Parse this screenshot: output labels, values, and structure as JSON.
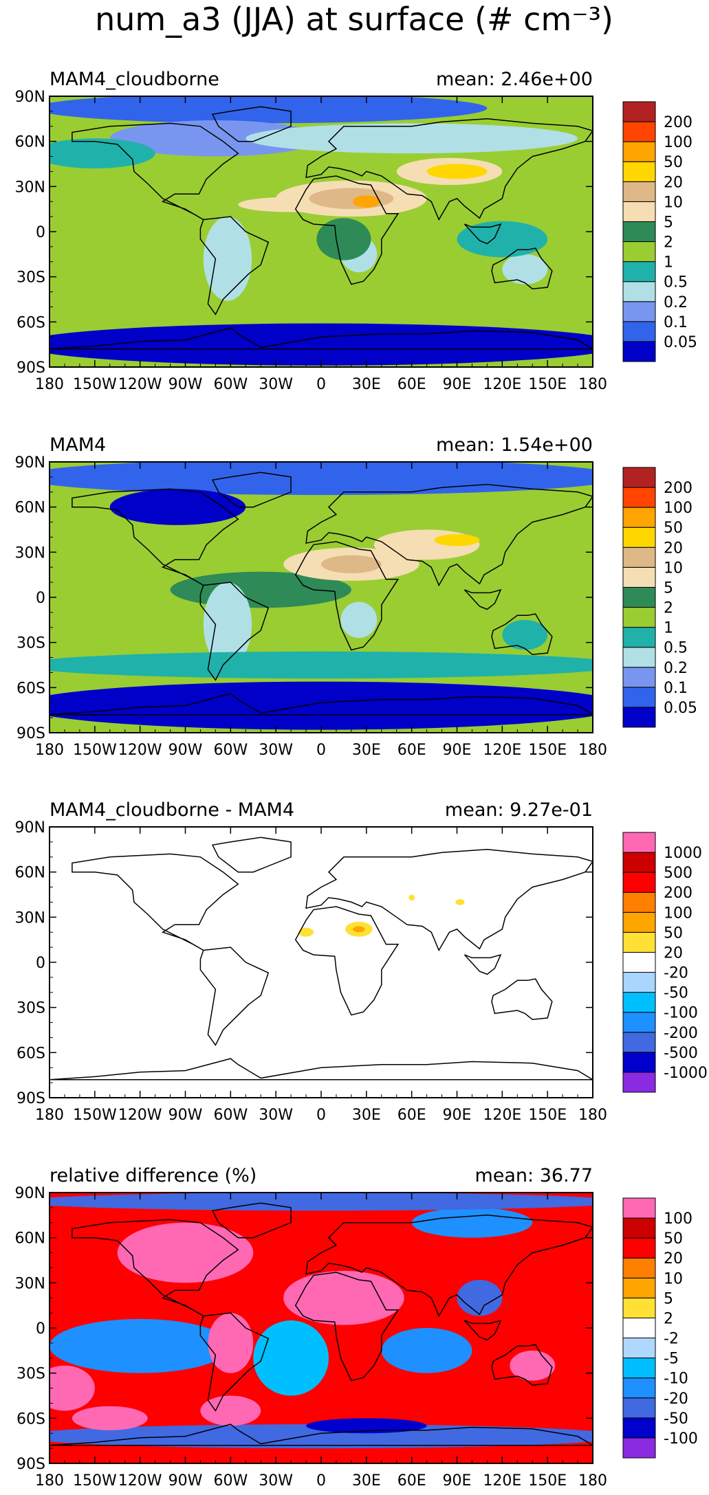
{
  "figure_title": "num_a3 (JJA) at surface (# cm⁻³)",
  "colors": {
    "abs": [
      "#0000c8",
      "#3264eb",
      "#7896f0",
      "#b0e0e6",
      "#20b2aa",
      "#9acd32",
      "#2e8b57",
      "#f5deb3",
      "#deb887",
      "#ffd700",
      "#ffa500",
      "#ff4500",
      "#b22222"
    ],
    "diff": [
      "#8a2be2",
      "#0000cd",
      "#4169e1",
      "#1e90ff",
      "#00bfff",
      "#a9d6ff",
      "#ffffff",
      "#ffe135",
      "#ffa500",
      "#ff7f00",
      "#ff0000",
      "#cd0000",
      "#ff69b4"
    ],
    "rel": [
      "#8a2be2",
      "#0000cd",
      "#4169e1",
      "#1e90ff",
      "#00bfff",
      "#b0d8ff",
      "#ffffff",
      "#ffe135",
      "#ffa500",
      "#ff7f00",
      "#ff0000",
      "#cd0000",
      "#ff69b4"
    ]
  },
  "chart_data": [
    {
      "type": "heatmap",
      "title": "MAM4_cloudborne",
      "mean_label": "mean: 2.46e+00",
      "x_ticks": [
        "180",
        "150W",
        "120W",
        "90W",
        "60W",
        "30W",
        "0",
        "30E",
        "60E",
        "90E",
        "120E",
        "150E",
        "180"
      ],
      "y_ticks": [
        "90N",
        "60N",
        "30N",
        "0",
        "30S",
        "60S",
        "90S"
      ],
      "colorbar_labels": [
        "0.05",
        "0.1",
        "0.2",
        "0.5",
        "1",
        "2",
        "5",
        "10",
        "20",
        "50",
        "100",
        "200"
      ],
      "palette": "abs",
      "base_level": 5,
      "regions": [
        {
          "lon": -40,
          "lat": 82,
          "rx": 150,
          "ry": 10,
          "level": 1
        },
        {
          "lon": -70,
          "lat": 62,
          "rx": 70,
          "ry": 12,
          "level": 2
        },
        {
          "lon": 60,
          "lat": 62,
          "rx": 110,
          "ry": 10,
          "level": 3
        },
        {
          "lon": -150,
          "lat": 52,
          "rx": 40,
          "ry": 10,
          "level": 4
        },
        {
          "lon": 20,
          "lat": 22,
          "rx": 50,
          "ry": 12,
          "level": 7
        },
        {
          "lon": 85,
          "lat": 40,
          "rx": 35,
          "ry": 9,
          "level": 7
        },
        {
          "lon": -20,
          "lat": 18,
          "rx": 35,
          "ry": 5,
          "level": 7
        },
        {
          "lon": 20,
          "lat": 22,
          "rx": 28,
          "ry": 7,
          "level": 8
        },
        {
          "lon": 90,
          "lat": 40,
          "rx": 20,
          "ry": 5,
          "level": 9
        },
        {
          "lon": 30,
          "lat": 20,
          "rx": 9,
          "ry": 4,
          "level": 10
        },
        {
          "lon": -62,
          "lat": -18,
          "rx": 16,
          "ry": 28,
          "level": 3
        },
        {
          "lon": 25,
          "lat": -15,
          "rx": 12,
          "ry": 12,
          "level": 3
        },
        {
          "lon": 135,
          "lat": -25,
          "rx": 15,
          "ry": 10,
          "level": 3
        },
        {
          "lon": 120,
          "lat": -5,
          "rx": 30,
          "ry": 12,
          "level": 4
        },
        {
          "lon": 15,
          "lat": -5,
          "rx": 18,
          "ry": 14,
          "level": 6
        },
        {
          "lon": 0,
          "lat": -75,
          "rx": 200,
          "ry": 14,
          "level": 0
        }
      ]
    },
    {
      "type": "heatmap",
      "title": "MAM4",
      "mean_label": "mean: 1.54e+00",
      "x_ticks": [
        "180",
        "150W",
        "120W",
        "90W",
        "60W",
        "30W",
        "0",
        "30E",
        "60E",
        "90E",
        "120E",
        "150E",
        "180"
      ],
      "y_ticks": [
        "90N",
        "60N",
        "30N",
        "0",
        "30S",
        "60S",
        "90S"
      ],
      "colorbar_labels": [
        "0.05",
        "0.1",
        "0.2",
        "0.5",
        "1",
        "2",
        "5",
        "10",
        "20",
        "50",
        "100",
        "200"
      ],
      "palette": "abs",
      "base_level": 5,
      "regions": [
        {
          "lon": 0,
          "lat": 80,
          "rx": 200,
          "ry": 12,
          "level": 1
        },
        {
          "lon": -95,
          "lat": 60,
          "rx": 45,
          "ry": 12,
          "level": 0
        },
        {
          "lon": -40,
          "lat": 5,
          "rx": 60,
          "ry": 12,
          "level": 6
        },
        {
          "lon": -62,
          "lat": -18,
          "rx": 16,
          "ry": 28,
          "level": 3
        },
        {
          "lon": 20,
          "lat": 22,
          "rx": 45,
          "ry": 11,
          "level": 7
        },
        {
          "lon": 70,
          "lat": 35,
          "rx": 35,
          "ry": 10,
          "level": 7
        },
        {
          "lon": 20,
          "lat": 22,
          "rx": 20,
          "ry": 6,
          "level": 8
        },
        {
          "lon": 90,
          "lat": 38,
          "rx": 15,
          "ry": 4,
          "level": 9
        },
        {
          "lon": 25,
          "lat": -15,
          "rx": 12,
          "ry": 12,
          "level": 3
        },
        {
          "lon": 135,
          "lat": -25,
          "rx": 15,
          "ry": 10,
          "level": 4
        },
        {
          "lon": 0,
          "lat": -45,
          "rx": 200,
          "ry": 9,
          "level": 4
        },
        {
          "lon": 0,
          "lat": -72,
          "rx": 200,
          "ry": 16,
          "level": 0
        }
      ]
    },
    {
      "type": "heatmap",
      "title": "MAM4_cloudborne - MAM4",
      "mean_label": "mean: 9.27e-01",
      "x_ticks": [
        "180",
        "150W",
        "120W",
        "90W",
        "60W",
        "30W",
        "0",
        "30E",
        "60E",
        "90E",
        "120E",
        "150E",
        "180"
      ],
      "y_ticks": [
        "90N",
        "60N",
        "30N",
        "0",
        "30S",
        "60S",
        "90S"
      ],
      "colorbar_labels": [
        "-1000",
        "-500",
        "-200",
        "-100",
        "-50",
        "-20",
        "20",
        "50",
        "100",
        "200",
        "500",
        "1000"
      ],
      "palette": "diff",
      "base_level": 6,
      "regions": [
        {
          "lon": -10,
          "lat": 20,
          "rx": 5,
          "ry": 3,
          "level": 7
        },
        {
          "lon": 25,
          "lat": 22,
          "rx": 9,
          "ry": 5,
          "level": 7
        },
        {
          "lon": 25,
          "lat": 22,
          "rx": 4,
          "ry": 2,
          "level": 8
        },
        {
          "lon": 60,
          "lat": 43,
          "rx": 2,
          "ry": 2,
          "level": 7
        },
        {
          "lon": 92,
          "lat": 40,
          "rx": 3,
          "ry": 2,
          "level": 7
        }
      ]
    },
    {
      "type": "heatmap",
      "title": "relative difference (%)",
      "mean_label": "mean: 36.77",
      "x_ticks": [
        "180",
        "150W",
        "120W",
        "90W",
        "60W",
        "30W",
        "0",
        "30E",
        "60E",
        "90E",
        "120E",
        "150E",
        "180"
      ],
      "y_ticks": [
        "90N",
        "60N",
        "30N",
        "0",
        "30S",
        "60S",
        "90S"
      ],
      "colorbar_labels": [
        "-100",
        "-50",
        "-20",
        "-10",
        "-5",
        "-2",
        "2",
        "5",
        "10",
        "20",
        "50",
        "100"
      ],
      "palette": "rel",
      "base_level": 10,
      "regions": [
        {
          "lon": -120,
          "lat": -12,
          "rx": 60,
          "ry": 18,
          "level": 3
        },
        {
          "lon": -20,
          "lat": -20,
          "rx": 25,
          "ry": 25,
          "level": 4
        },
        {
          "lon": 70,
          "lat": -15,
          "rx": 30,
          "ry": 15,
          "level": 3
        },
        {
          "lon": 0,
          "lat": -72,
          "rx": 200,
          "ry": 8,
          "level": 2
        },
        {
          "lon": 30,
          "lat": -65,
          "rx": 40,
          "ry": 5,
          "level": 1
        },
        {
          "lon": 100,
          "lat": 70,
          "rx": 40,
          "ry": 10,
          "level": 3
        },
        {
          "lon": 0,
          "lat": 84,
          "rx": 200,
          "ry": 6,
          "level": 2
        },
        {
          "lon": -90,
          "lat": 50,
          "rx": 45,
          "ry": 20,
          "level": 12
        },
        {
          "lon": 15,
          "lat": 20,
          "rx": 40,
          "ry": 18,
          "level": 12
        },
        {
          "lon": -60,
          "lat": -10,
          "rx": 15,
          "ry": 20,
          "level": 12
        },
        {
          "lon": 105,
          "lat": 20,
          "rx": 15,
          "ry": 12,
          "level": 2
        },
        {
          "lon": -170,
          "lat": -40,
          "rx": 20,
          "ry": 15,
          "level": 12
        },
        {
          "lon": 140,
          "lat": -25,
          "rx": 15,
          "ry": 10,
          "level": 12
        },
        {
          "lon": -140,
          "lat": -60,
          "rx": 25,
          "ry": 8,
          "level": 12
        },
        {
          "lon": -60,
          "lat": -55,
          "rx": 20,
          "ry": 10,
          "level": 12
        }
      ]
    }
  ]
}
